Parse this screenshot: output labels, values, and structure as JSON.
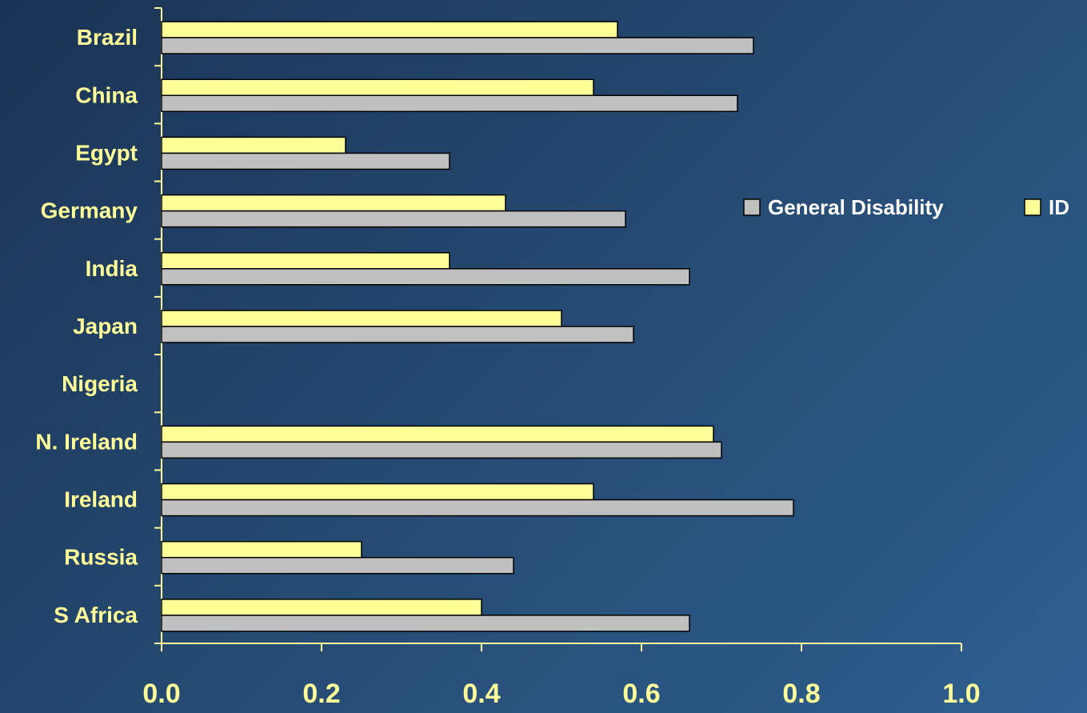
{
  "chart_data": {
    "type": "bar",
    "orientation": "horizontal",
    "categories": [
      "Brazil",
      "China",
      "Egypt",
      "Germany",
      "India",
      "Japan",
      "Nigeria",
      "N. Ireland",
      "Ireland",
      "Russia",
      "S Africa"
    ],
    "series": [
      {
        "name": "ID",
        "color": "#ffff99",
        "values": [
          0.57,
          0.54,
          0.23,
          0.43,
          0.36,
          0.5,
          null,
          0.69,
          0.54,
          0.25,
          0.4
        ]
      },
      {
        "name": "General Disability",
        "color": "#c0c0c0",
        "values": [
          0.74,
          0.72,
          0.36,
          0.58,
          0.66,
          0.59,
          null,
          0.7,
          0.79,
          0.44,
          0.66
        ]
      }
    ],
    "xlim": [
      0,
      1
    ],
    "xticks": [
      "0.0",
      "0.2",
      "0.4",
      "0.6",
      "0.8",
      "1.0"
    ],
    "legend": {
      "position": "right",
      "order": [
        "General Disability",
        "ID"
      ]
    },
    "grid": false,
    "axis_color": "#ffff99"
  }
}
